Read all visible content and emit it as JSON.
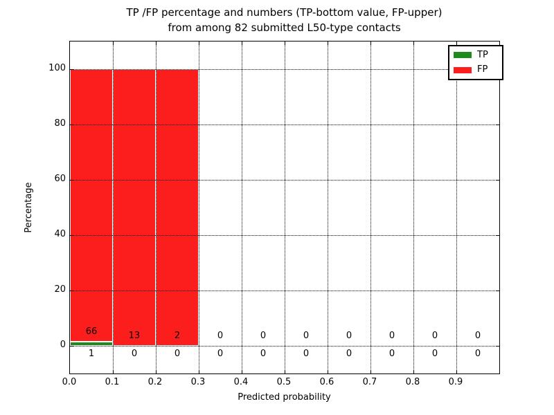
{
  "title": {
    "line1": "TP /FP percentage and numbers (TP-bottom value, FP-upper)",
    "line2": "from among 82 submitted L50-type contacts"
  },
  "axes": {
    "xlabel": "Predicted probability",
    "ylabel": "Percentage"
  },
  "legend": {
    "items": [
      {
        "label": "TP",
        "color": "#1e8a1e"
      },
      {
        "label": "FP",
        "color": "#fc1d1d"
      }
    ]
  },
  "chart_data": {
    "type": "bar",
    "stacked": true,
    "title": "TP /FP percentage and numbers (TP-bottom value, FP-upper) from among 82 submitted L50-type contacts",
    "xlabel": "Predicted probability",
    "ylabel": "Percentage",
    "total_contacts": 82,
    "bin_edges": [
      0.0,
      0.1,
      0.2,
      0.3,
      0.4,
      0.5,
      0.6,
      0.7,
      0.8,
      0.9,
      1.0
    ],
    "xtick_labels": [
      "0.0",
      "0.1",
      "0.2",
      "0.3",
      "0.4",
      "0.5",
      "0.6",
      "0.7",
      "0.8",
      "0.9"
    ],
    "yticks": [
      0,
      20,
      40,
      60,
      80,
      100
    ],
    "xlim": [
      0.0,
      1.0
    ],
    "ylim": [
      -10,
      110
    ],
    "grid": true,
    "legend_position": "upper right",
    "series": [
      {
        "name": "TP",
        "color": "#1e8a1e",
        "counts": [
          1,
          0,
          0,
          0,
          0,
          0,
          0,
          0,
          0,
          0
        ],
        "percents": [
          1.5,
          0,
          0,
          0,
          0,
          0,
          0,
          0,
          0,
          0
        ]
      },
      {
        "name": "FP",
        "color": "#fc1d1d",
        "counts": [
          66,
          13,
          2,
          0,
          0,
          0,
          0,
          0,
          0,
          0
        ],
        "percents": [
          98.5,
          100,
          100,
          0,
          0,
          0,
          0,
          0,
          0,
          0
        ]
      }
    ]
  }
}
